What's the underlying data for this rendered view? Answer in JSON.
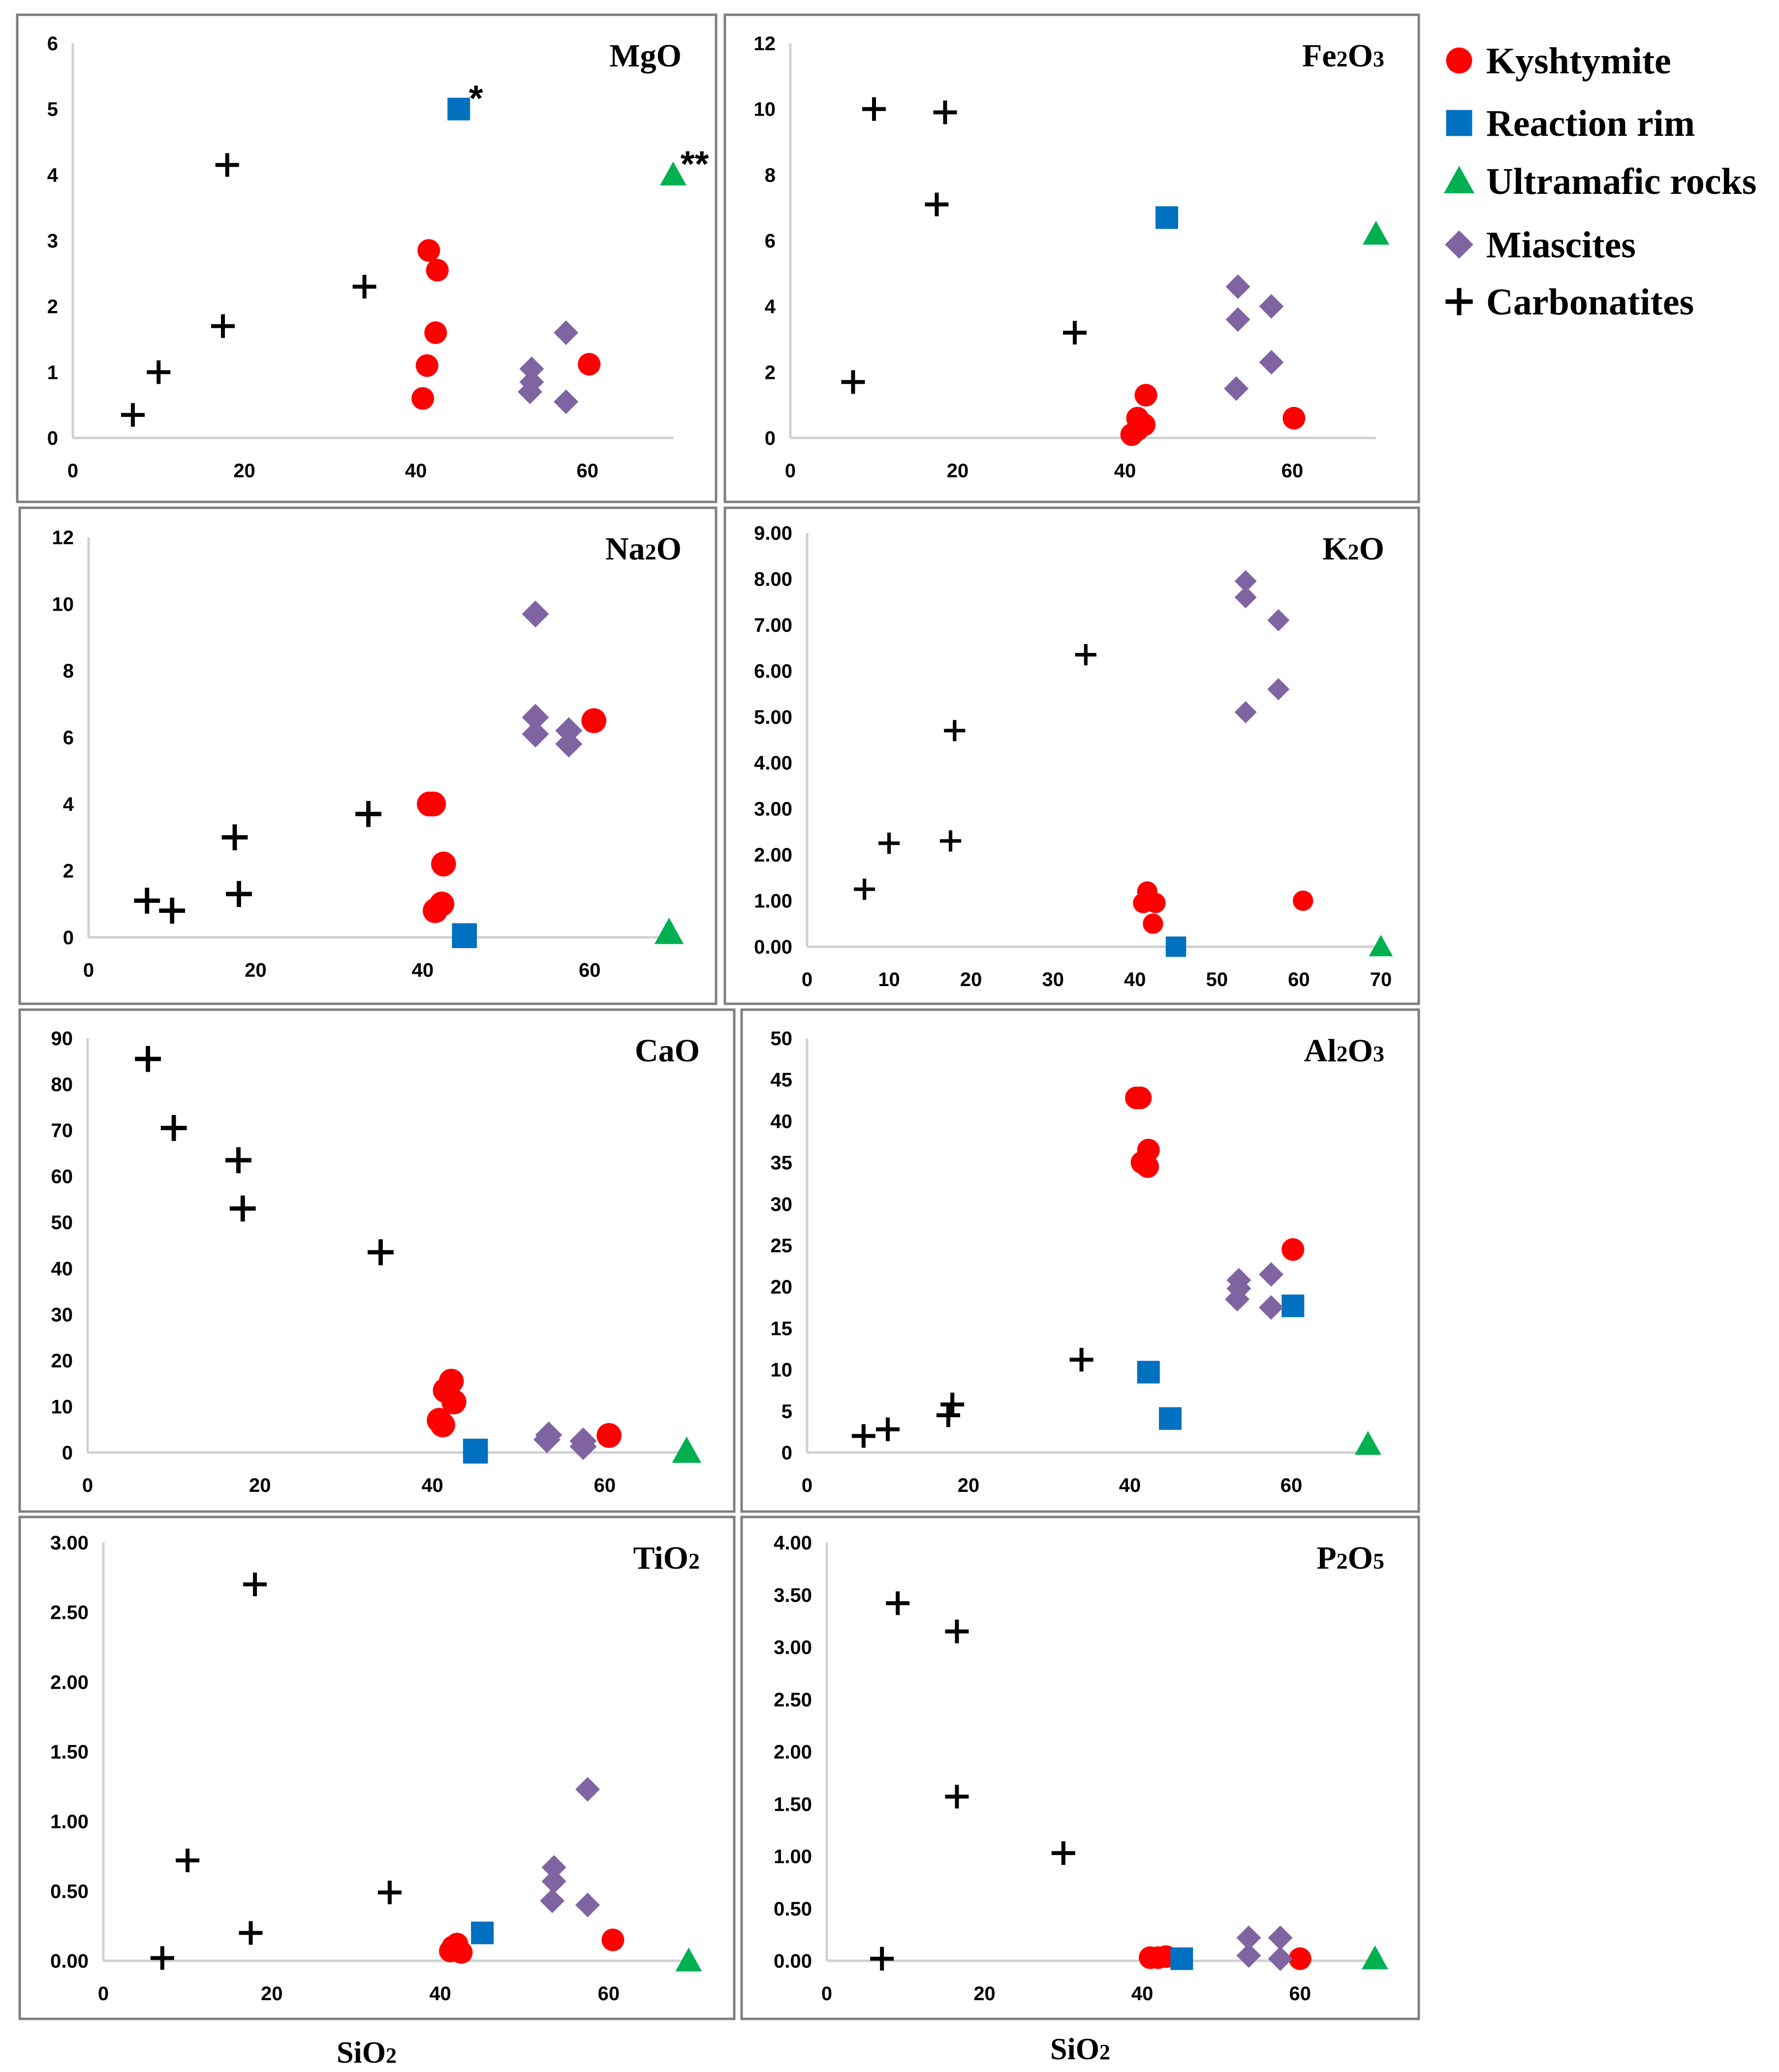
{
  "legend": [
    {
      "key": "kyshtymite",
      "label": "Kyshtymite",
      "color": "#ff0000",
      "marker": "circle"
    },
    {
      "key": "reaction_rim",
      "label": "Reaction rim",
      "color": "#0070c0",
      "marker": "square"
    },
    {
      "key": "ultramafic",
      "label": "Ultramafic rocks",
      "color": "#00b050",
      "marker": "triangle"
    },
    {
      "key": "miascites",
      "label": "Miascites",
      "color": "#8064a2",
      "marker": "diamond"
    },
    {
      "key": "carbonatites",
      "label": "Carbonatites",
      "color": "#000000",
      "marker": "cross"
    }
  ],
  "x_axis_titles": [
    "SiO2",
    "SiO2"
  ],
  "chart_data": [
    {
      "type": "scatter",
      "title": "MgO",
      "xlabel": "SiO2",
      "ylabel": "MgO",
      "xlim": [
        0,
        70
      ],
      "ylim": [
        0,
        6
      ],
      "xticks": [
        "0",
        "20",
        "40",
        "60"
      ],
      "yticks": [
        "0",
        "1",
        "2",
        "3",
        "4",
        "5",
        "6"
      ],
      "annotations": [
        {
          "text": "*",
          "x": 47,
          "y": 5.2
        },
        {
          "text": "**",
          "x": 72.5,
          "y": 4.2
        }
      ],
      "series": [
        {
          "name": "Kyshtymite",
          "points": [
            [
              41.5,
              2.85
            ],
            [
              42.5,
              2.55
            ],
            [
              42.3,
              1.6
            ],
            [
              41.3,
              1.1
            ],
            [
              40.8,
              0.6
            ],
            [
              60.2,
              1.12
            ]
          ]
        },
        {
          "name": "Reaction rim",
          "points": [
            [
              45,
              5
            ]
          ]
        },
        {
          "name": "Ultramafic rocks",
          "points": [
            [
              70,
              4
            ]
          ]
        },
        {
          "name": "Miascites",
          "points": [
            [
              53.5,
              1.05
            ],
            [
              53.5,
              0.85
            ],
            [
              53.3,
              0.7
            ],
            [
              57.5,
              1.6
            ],
            [
              57.5,
              0.55
            ]
          ]
        },
        {
          "name": "Carbonatites",
          "points": [
            [
              7,
              0.35
            ],
            [
              10,
              1.0
            ],
            [
              17.5,
              1.7
            ],
            [
              18,
              4.15
            ],
            [
              34,
              2.3
            ]
          ]
        }
      ]
    },
    {
      "type": "scatter",
      "title": "Fe2O3",
      "xlabel": "SiO2",
      "ylabel": "Fe2O3",
      "xlim": [
        0,
        70
      ],
      "ylim": [
        0,
        12
      ],
      "xticks": [
        "0",
        "20",
        "40",
        "60"
      ],
      "yticks": [
        "0",
        "2",
        "4",
        "6",
        "8",
        "10",
        "12"
      ],
      "series": [
        {
          "name": "Kyshtymite",
          "points": [
            [
              42.5,
              1.3
            ],
            [
              41.5,
              0.6
            ],
            [
              42.3,
              0.4
            ],
            [
              40.8,
              0.1
            ],
            [
              41.5,
              0.25
            ],
            [
              60.2,
              0.6
            ]
          ]
        },
        {
          "name": "Reaction rim",
          "points": [
            [
              45,
              6.7
            ]
          ]
        },
        {
          "name": "Ultramafic rocks",
          "points": [
            [
              70,
              6.2
            ]
          ]
        },
        {
          "name": "Miascites",
          "points": [
            [
              53.5,
              4.6
            ],
            [
              53.5,
              3.6
            ],
            [
              53.3,
              1.5
            ],
            [
              57.5,
              4.0
            ],
            [
              57.5,
              2.3
            ]
          ]
        },
        {
          "name": "Carbonatites",
          "points": [
            [
              7.5,
              1.7
            ],
            [
              10,
              10
            ],
            [
              18.5,
              9.9
            ],
            [
              17.5,
              7.1
            ],
            [
              34,
              3.2
            ]
          ]
        }
      ]
    },
    {
      "type": "scatter",
      "title": "Na2O",
      "xlabel": "SiO2",
      "ylabel": "Na2O",
      "xlim": [
        0,
        70
      ],
      "ylim": [
        0,
        12
      ],
      "xticks": [
        "0",
        "20",
        "40",
        "60"
      ],
      "yticks": [
        "0",
        "2",
        "4",
        "6",
        "8",
        "10",
        "12"
      ],
      "series": [
        {
          "name": "Kyshtymite",
          "points": [
            [
              40.8,
              4.0
            ],
            [
              41.3,
              4.0
            ],
            [
              42.5,
              2.2
            ],
            [
              41.5,
              0.8
            ],
            [
              42.3,
              1.0
            ],
            [
              60.5,
              6.5
            ]
          ]
        },
        {
          "name": "Reaction rim",
          "points": [
            [
              45,
              0.05
            ]
          ]
        },
        {
          "name": "Ultramafic rocks",
          "points": [
            [
              69.5,
              0.15
            ]
          ]
        },
        {
          "name": "Miascites",
          "points": [
            [
              53.5,
              9.7
            ],
            [
              53.5,
              6.6
            ],
            [
              53.5,
              6.1
            ],
            [
              57.5,
              6.2
            ],
            [
              57.5,
              5.8
            ]
          ]
        },
        {
          "name": "Carbonatites",
          "points": [
            [
              7,
              1.1
            ],
            [
              10,
              0.8
            ],
            [
              17.5,
              3.0
            ],
            [
              18,
              1.3
            ],
            [
              33.5,
              3.7
            ]
          ]
        }
      ]
    },
    {
      "type": "scatter",
      "title": "K2O",
      "xlabel": "SiO2",
      "ylabel": "K2O",
      "xlim": [
        0,
        70
      ],
      "ylim": [
        0,
        9
      ],
      "xticks": [
        "0",
        "10",
        "20",
        "30",
        "40",
        "50",
        "60",
        "70"
      ],
      "yticks": [
        "0.00",
        "1.00",
        "2.00",
        "3.00",
        "4.00",
        "5.00",
        "6.00",
        "7.00",
        "8.00",
        "9.00"
      ],
      "series": [
        {
          "name": "Kyshtymite",
          "points": [
            [
              41.5,
              1.2
            ],
            [
              41,
              0.95
            ],
            [
              42.5,
              0.95
            ],
            [
              42.2,
              0.5
            ],
            [
              60.5,
              1.0
            ]
          ]
        },
        {
          "name": "Reaction rim",
          "points": [
            [
              45,
              0.0
            ]
          ]
        },
        {
          "name": "Ultramafic rocks",
          "points": [
            [
              70,
              0.0
            ]
          ]
        },
        {
          "name": "Miascites",
          "points": [
            [
              53.5,
              7.95
            ],
            [
              53.5,
              7.6
            ],
            [
              57.5,
              7.1
            ],
            [
              57.5,
              5.6
            ],
            [
              53.5,
              5.1
            ]
          ]
        },
        {
          "name": "Carbonatites",
          "points": [
            [
              7,
              1.25
            ],
            [
              10,
              2.25
            ],
            [
              18,
              4.7
            ],
            [
              17.5,
              2.3
            ],
            [
              34,
              6.35
            ]
          ]
        }
      ]
    },
    {
      "type": "scatter",
      "title": "CaO",
      "xlabel": "SiO2",
      "ylabel": "CaO",
      "xlim": [
        0,
        70
      ],
      "ylim": [
        0,
        90
      ],
      "xticks": [
        "0",
        "20",
        "40",
        "60"
      ],
      "yticks": [
        "0",
        "10",
        "20",
        "30",
        "40",
        "50",
        "60",
        "70",
        "80",
        "90"
      ],
      "series": [
        {
          "name": "Kyshtymite",
          "points": [
            [
              42.2,
              15.5
            ],
            [
              41.5,
              13.5
            ],
            [
              42.5,
              11.0
            ],
            [
              40.8,
              7.0
            ],
            [
              41.2,
              6.0
            ],
            [
              60.5,
              3.7
            ]
          ]
        },
        {
          "name": "Reaction rim",
          "points": [
            [
              45,
              0.3
            ]
          ]
        },
        {
          "name": "Ultramafic rocks",
          "points": [
            [
              69.5,
              0.3
            ]
          ]
        },
        {
          "name": "Miascites",
          "points": [
            [
              53.5,
              3.8
            ],
            [
              53.3,
              2.8
            ],
            [
              57.5,
              2.5
            ],
            [
              57.5,
              1.3
            ]
          ]
        },
        {
          "name": "Carbonatites",
          "points": [
            [
              7,
              85.5
            ],
            [
              10,
              70.5
            ],
            [
              17.5,
              63.5
            ],
            [
              18,
              53
            ],
            [
              34,
              43.5
            ]
          ]
        }
      ]
    },
    {
      "type": "scatter",
      "title": "Al2O3",
      "xlabel": "SiO2",
      "ylabel": "Al2O3",
      "xlim": [
        0,
        70
      ],
      "ylim": [
        0,
        50
      ],
      "xticks": [
        "0",
        "20",
        "40",
        "60"
      ],
      "yticks": [
        "0",
        "5",
        "10",
        "15",
        "20",
        "25",
        "30",
        "35",
        "40",
        "45",
        "50"
      ],
      "series": [
        {
          "name": "Kyshtymite",
          "points": [
            [
              40.8,
              42.8
            ],
            [
              41.3,
              42.8
            ],
            [
              42.3,
              36.5
            ],
            [
              41.5,
              35.0
            ],
            [
              42.2,
              34.5
            ],
            [
              60.2,
              24.5
            ]
          ]
        },
        {
          "name": "Reaction rim",
          "points": [
            [
              60.2,
              17.7
            ],
            [
              42.3,
              9.7
            ],
            [
              45,
              4.1
            ]
          ]
        },
        {
          "name": "Ultramafic rocks",
          "points": [
            [
              69.5,
              1.0
            ]
          ]
        },
        {
          "name": "Miascites",
          "points": [
            [
              53.5,
              20.8
            ],
            [
              53.5,
              19.8
            ],
            [
              53.3,
              18.5
            ],
            [
              57.5,
              21.5
            ],
            [
              57.5,
              17.5
            ]
          ]
        },
        {
          "name": "Carbonatites",
          "points": [
            [
              7,
              2.0
            ],
            [
              10,
              2.8
            ],
            [
              17.5,
              4.5
            ],
            [
              18,
              5.8
            ],
            [
              34,
              11.2
            ]
          ]
        }
      ]
    },
    {
      "type": "scatter",
      "title": "TiO2",
      "xlabel": "SiO2",
      "ylabel": "TiO2",
      "xlim": [
        0,
        70
      ],
      "ylim": [
        0,
        3
      ],
      "xticks": [
        "0",
        "20",
        "40",
        "60"
      ],
      "yticks": [
        "0.00",
        "0.50",
        "1.00",
        "1.50",
        "2.00",
        "2.50",
        "3.00"
      ],
      "series": [
        {
          "name": "Kyshtymite",
          "points": [
            [
              41.5,
              0.1
            ],
            [
              42,
              0.12
            ],
            [
              42.5,
              0.06
            ],
            [
              41.2,
              0.07
            ],
            [
              60.5,
              0.15
            ]
          ]
        },
        {
          "name": "Reaction rim",
          "points": [
            [
              45,
              0.2
            ]
          ]
        },
        {
          "name": "Ultramafic rocks",
          "points": [
            [
              69.5,
              0.0
            ]
          ]
        },
        {
          "name": "Miascites",
          "points": [
            [
              53.5,
              0.67
            ],
            [
              53.5,
              0.57
            ],
            [
              53.3,
              0.43
            ],
            [
              57.5,
              1.23
            ],
            [
              57.5,
              0.4
            ]
          ]
        },
        {
          "name": "Carbonatites",
          "points": [
            [
              7,
              0.02
            ],
            [
              10,
              0.72
            ],
            [
              18,
              2.7
            ],
            [
              17.5,
              0.2
            ],
            [
              34,
              0.49
            ]
          ]
        }
      ]
    },
    {
      "type": "scatter",
      "title": "P2O5",
      "xlabel": "SiO2",
      "ylabel": "P2O5",
      "xlim": [
        0,
        70
      ],
      "ylim": [
        0,
        4
      ],
      "xticks": [
        "0",
        "20",
        "40",
        "60"
      ],
      "yticks": [
        "0.00",
        "0.50",
        "1.00",
        "1.50",
        "2.00",
        "2.50",
        "3.00",
        "3.50",
        "4.00"
      ],
      "series": [
        {
          "name": "Kyshtymite",
          "points": [
            [
              41,
              0.03
            ],
            [
              42,
              0.03
            ],
            [
              43,
              0.04
            ],
            [
              60,
              0.02
            ]
          ]
        },
        {
          "name": "Reaction rim",
          "points": [
            [
              45,
              0.02
            ]
          ]
        },
        {
          "name": "Ultramafic rocks",
          "points": [
            [
              69.5,
              0.02
            ]
          ]
        },
        {
          "name": "Miascites",
          "points": [
            [
              53.5,
              0.22
            ],
            [
              53.5,
              0.05
            ],
            [
              57.5,
              0.22
            ],
            [
              57.5,
              0.02
            ]
          ]
        },
        {
          "name": "Carbonatites",
          "points": [
            [
              7,
              0.02
            ],
            [
              9,
              3.42
            ],
            [
              16.5,
              3.15
            ],
            [
              16.5,
              1.57
            ],
            [
              30,
              1.03
            ]
          ]
        }
      ]
    }
  ]
}
